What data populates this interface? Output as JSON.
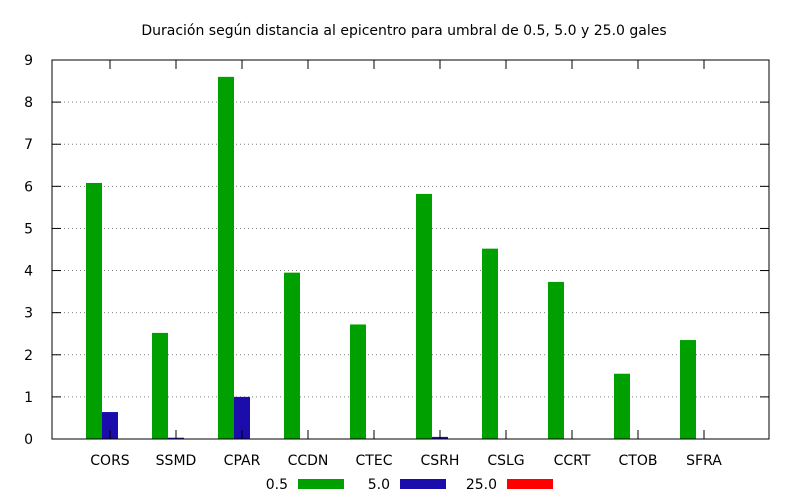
{
  "chart_data": {
    "type": "bar",
    "title": "Duración según distancia al epicentro para umbral de 0.5, 5.0 y 25.0 gales",
    "xlabel": "",
    "ylabel": "",
    "ylim": [
      0,
      9
    ],
    "yticks": [
      0,
      1,
      2,
      3,
      4,
      5,
      6,
      7,
      8,
      9
    ],
    "grid": "horizontal-dotted",
    "legend_position": "bottom",
    "categories": [
      "CORS",
      "SSMD",
      "CPAR",
      "CCDN",
      "CTEC",
      "CSRH",
      "CSLG",
      "CCRT",
      "CTOB",
      "SFRA"
    ],
    "series": [
      {
        "name": "0.5",
        "color": "#00a000",
        "values": [
          6.08,
          2.52,
          8.6,
          3.95,
          2.72,
          5.82,
          4.52,
          3.73,
          1.55,
          2.35
        ]
      },
      {
        "name": "5.0",
        "color": "#1a0dab",
        "values": [
          0.64,
          0.03,
          1.0,
          0,
          0,
          0.05,
          0,
          0,
          0,
          0
        ]
      },
      {
        "name": "25.0",
        "color": "#ff0000",
        "values": [
          0,
          0,
          0,
          0,
          0,
          0,
          0,
          0,
          0,
          0
        ]
      }
    ]
  }
}
